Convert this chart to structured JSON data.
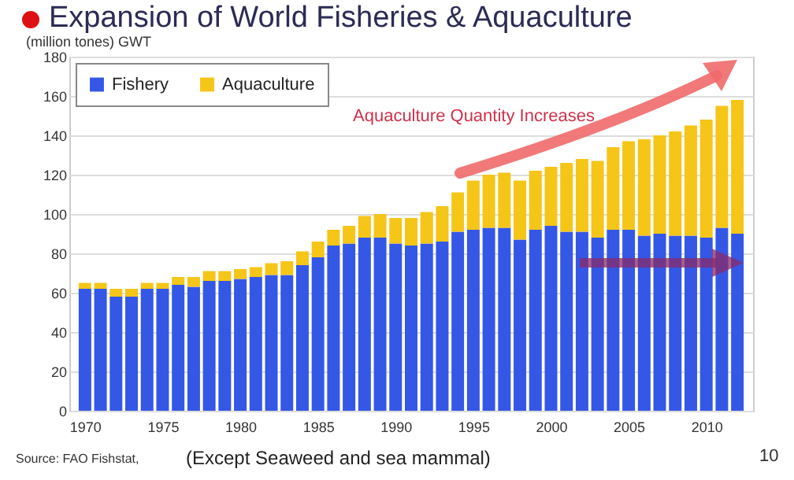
{
  "chart_data": {
    "type": "bar",
    "title": "Expansion of World Fisheries & Aquaculture",
    "ylabel": "(million tones)  GWT",
    "annotations": [
      "Aquaculture Quantity Increases",
      "Source: FAO Fishstat,",
      "(Except Seaweed and sea mammal)",
      "10"
    ],
    "x": [
      1970,
      1971,
      1972,
      1973,
      1974,
      1975,
      1976,
      1977,
      1978,
      1979,
      1980,
      1981,
      1982,
      1983,
      1984,
      1985,
      1986,
      1987,
      1988,
      1989,
      1990,
      1991,
      1992,
      1993,
      1994,
      1995,
      1996,
      1997,
      1998,
      1999,
      2000,
      2001,
      2002,
      2003,
      2004,
      2005,
      2006,
      2007,
      2008,
      2009,
      2010,
      2011,
      2012
    ],
    "series": [
      {
        "name": "Fishery",
        "color": "#3557e6",
        "values": [
          62,
          62,
          58,
          58,
          62,
          62,
          64,
          63,
          66,
          66,
          67,
          68,
          69,
          69,
          74,
          78,
          84,
          85,
          88,
          88,
          85,
          84,
          85,
          86,
          91,
          92,
          93,
          93,
          87,
          92,
          94,
          91,
          91,
          88,
          92,
          92,
          89,
          90,
          89,
          89,
          88,
          93,
          90
        ]
      },
      {
        "name": "Aquaculture",
        "color": "#f5c518",
        "values": [
          3,
          3,
          4,
          4,
          3,
          3,
          4,
          5,
          5,
          5,
          5,
          5,
          6,
          7,
          7,
          8,
          8,
          9,
          11,
          12,
          13,
          14,
          16,
          18,
          20,
          25,
          27,
          28,
          30,
          30,
          30,
          35,
          37,
          39,
          42,
          45,
          49,
          50,
          53,
          56,
          60,
          62,
          68
        ]
      }
    ],
    "stacked": true,
    "xlim": [
      1969.5,
      2012.5
    ],
    "xticks": [
      1970,
      1975,
      1980,
      1985,
      1990,
      1995,
      2000,
      2005,
      2010
    ],
    "ylim": [
      0,
      180
    ],
    "yticks": [
      0,
      20,
      40,
      60,
      80,
      100,
      120,
      140,
      160,
      180
    ],
    "grid": "y",
    "legend": "top left"
  }
}
